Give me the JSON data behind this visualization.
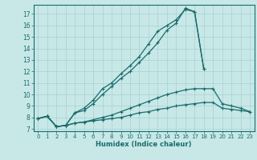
{
  "xlabel": "Humidex (Indice chaleur)",
  "bg_color": "#c8e8e8",
  "line_color": "#1a6b6b",
  "grid_color": "#a8d0d0",
  "xlim": [
    -0.5,
    23.5
  ],
  "ylim": [
    6.8,
    17.8
  ],
  "yticks": [
    7,
    8,
    9,
    10,
    11,
    12,
    13,
    14,
    15,
    16,
    17
  ],
  "xticks": [
    0,
    1,
    2,
    3,
    4,
    5,
    6,
    7,
    8,
    9,
    10,
    11,
    12,
    13,
    14,
    15,
    16,
    17,
    18,
    19,
    20,
    21,
    22,
    23
  ],
  "lines": [
    {
      "x": [
        0,
        1,
        2,
        3,
        4,
        5,
        6,
        7,
        8,
        9,
        10,
        11,
        12,
        13,
        14,
        15,
        16,
        17,
        18
      ],
      "y": [
        7.9,
        8.1,
        7.2,
        7.3,
        8.4,
        8.8,
        9.5,
        10.5,
        11.0,
        11.8,
        12.5,
        13.3,
        14.4,
        15.5,
        16.0,
        16.5,
        17.4,
        17.2,
        12.2
      ]
    },
    {
      "x": [
        0,
        1,
        2,
        3,
        4,
        5,
        6,
        7,
        8,
        9,
        10,
        11,
        12,
        13,
        14,
        15,
        16,
        17,
        18
      ],
      "y": [
        7.9,
        8.1,
        7.2,
        7.3,
        8.4,
        8.6,
        9.2,
        10.0,
        10.7,
        11.4,
        12.0,
        12.8,
        13.6,
        14.5,
        15.6,
        16.2,
        17.5,
        17.2,
        12.2
      ]
    },
    {
      "x": [
        0,
        1,
        2,
        3,
        4,
        5,
        6,
        7,
        8,
        9,
        10,
        11,
        12,
        13,
        14,
        15,
        16,
        17,
        18,
        19,
        20,
        21,
        22,
        23
      ],
      "y": [
        7.9,
        8.1,
        7.2,
        7.3,
        7.5,
        7.6,
        7.8,
        8.0,
        8.2,
        8.5,
        8.8,
        9.1,
        9.4,
        9.7,
        10.0,
        10.2,
        10.4,
        10.5,
        10.5,
        10.5,
        9.2,
        9.0,
        8.8,
        8.5
      ]
    },
    {
      "x": [
        0,
        1,
        2,
        3,
        4,
        5,
        6,
        7,
        8,
        9,
        10,
        11,
        12,
        13,
        14,
        15,
        16,
        17,
        18,
        19,
        20,
        21,
        22,
        23
      ],
      "y": [
        7.9,
        8.1,
        7.2,
        7.3,
        7.5,
        7.6,
        7.7,
        7.8,
        7.9,
        8.0,
        8.2,
        8.4,
        8.5,
        8.7,
        8.8,
        9.0,
        9.1,
        9.2,
        9.3,
        9.3,
        8.8,
        8.7,
        8.6,
        8.5
      ]
    }
  ]
}
